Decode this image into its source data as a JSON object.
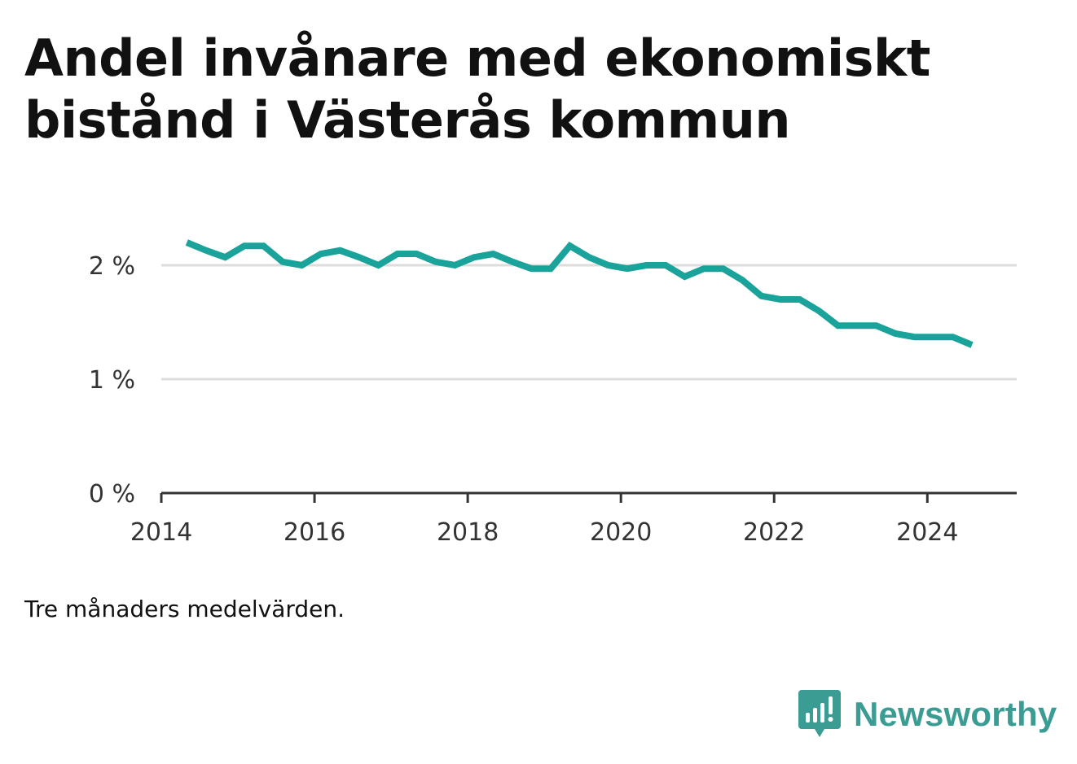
{
  "title": "Andel invånare med ekonomiskt bistånd i Västerås kommun",
  "note": "Tre månaders medelvärden.",
  "brand": {
    "name": "Newsworthy",
    "logo_icon": "newsworthy-logo-icon",
    "color": "#3b9c94"
  },
  "colors": {
    "line": "#1aa39a",
    "grid": "#dddddd",
    "axis": "#333333"
  },
  "chart_data": {
    "type": "line",
    "title": "Andel invånare med ekonomiskt bistånd i Västerås kommun",
    "xlabel": "",
    "ylabel": "",
    "xlim": [
      "2014-01-01",
      "2025-03-01"
    ],
    "ylim": [
      0,
      2.0
    ],
    "x_ticks": [
      {
        "value": "2014-01-01",
        "label": "2014"
      },
      {
        "value": "2016-01-01",
        "label": "2016"
      },
      {
        "value": "2018-01-01",
        "label": "2018"
      },
      {
        "value": "2020-01-01",
        "label": "2020"
      },
      {
        "value": "2022-01-01",
        "label": "2022"
      },
      {
        "value": "2024-01-01",
        "label": "2024"
      }
    ],
    "y_ticks": [
      {
        "value": 0,
        "label": "0 %"
      },
      {
        "value": 1,
        "label": "1 %"
      },
      {
        "value": 2,
        "label": "2 %"
      }
    ],
    "grid": true,
    "series": [
      {
        "x": [
          "2014-05",
          "2014-08",
          "2014-11",
          "2015-02",
          "2015-05",
          "2015-08",
          "2015-11",
          "2016-02",
          "2016-05",
          "2016-08",
          "2016-11",
          "2017-02",
          "2017-05",
          "2017-08",
          "2017-11",
          "2018-02",
          "2018-05",
          "2018-08",
          "2018-11",
          "2019-02",
          "2019-05",
          "2019-08",
          "2019-11",
          "2020-02",
          "2020-05",
          "2020-08",
          "2020-11",
          "2021-02",
          "2021-05",
          "2021-08",
          "2021-11",
          "2022-02",
          "2022-05",
          "2022-08",
          "2022-11",
          "2023-02",
          "2023-05",
          "2023-08",
          "2023-11",
          "2024-02",
          "2024-05",
          "2024-08"
        ],
        "values": [
          2.2,
          2.13,
          2.07,
          2.17,
          2.17,
          2.03,
          2.0,
          2.1,
          2.13,
          2.07,
          2.0,
          2.1,
          2.1,
          2.03,
          2.0,
          2.07,
          2.1,
          2.03,
          1.97,
          1.97,
          2.17,
          2.07,
          2.0,
          1.97,
          2.0,
          2.0,
          1.9,
          1.97,
          1.97,
          1.87,
          1.73,
          1.7,
          1.7,
          1.6,
          1.47,
          1.47,
          1.47,
          1.4,
          1.37,
          1.37,
          1.37,
          1.3
        ]
      }
    ]
  }
}
